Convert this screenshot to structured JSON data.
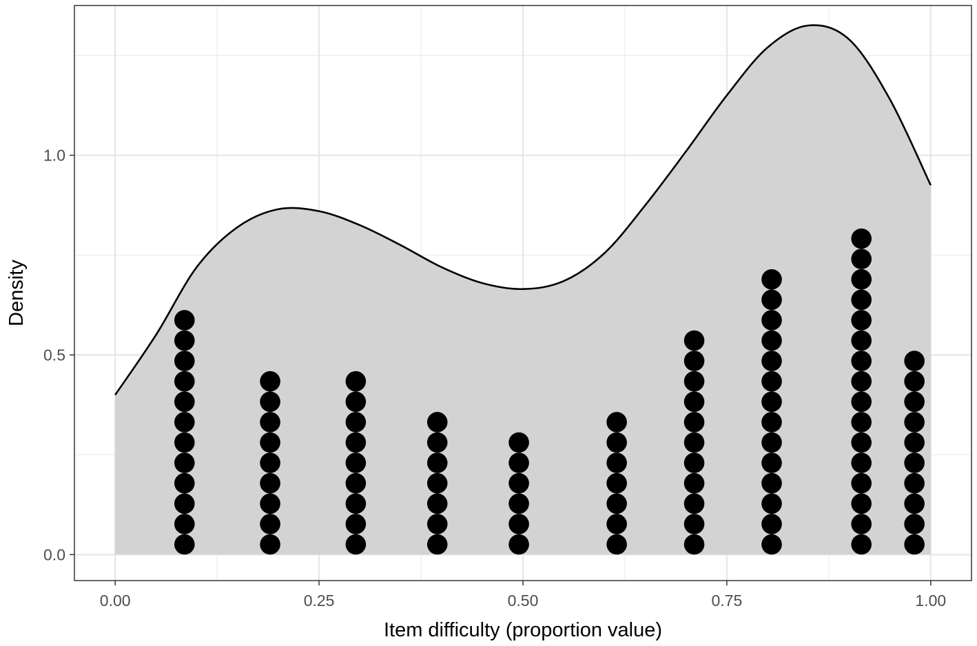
{
  "chart_data": {
    "type": "dotplot-density",
    "xlabel": "Item difficulty (proportion value)",
    "ylabel": "Density",
    "xlim": [
      -0.05,
      1.05
    ],
    "ylim": [
      -0.065,
      1.375
    ],
    "x_ticks": [
      0.0,
      0.25,
      0.5,
      0.75,
      1.0
    ],
    "x_tick_labels": [
      "0.00",
      "0.25",
      "0.50",
      "0.75",
      "1.00"
    ],
    "y_ticks": [
      0.0,
      0.5,
      1.0
    ],
    "y_tick_labels": [
      "0.0",
      "0.5",
      "1.0"
    ],
    "grid": true,
    "legend": "none",
    "density_curve": {
      "x": [
        0.0,
        0.05,
        0.1,
        0.15,
        0.2,
        0.25,
        0.3,
        0.35,
        0.4,
        0.45,
        0.5,
        0.55,
        0.6,
        0.65,
        0.7,
        0.75,
        0.8,
        0.85,
        0.9,
        0.95,
        1.0
      ],
      "y": [
        0.4,
        0.55,
        0.72,
        0.82,
        0.865,
        0.86,
        0.825,
        0.775,
        0.72,
        0.68,
        0.665,
        0.685,
        0.755,
        0.875,
        1.01,
        1.15,
        1.27,
        1.325,
        1.29,
        1.14,
        0.925
      ],
      "fill": "#d3d3d3",
      "line": "#000000"
    },
    "dot_columns": [
      {
        "x": 0.085,
        "count": 12
      },
      {
        "x": 0.19,
        "count": 9
      },
      {
        "x": 0.295,
        "count": 9
      },
      {
        "x": 0.395,
        "count": 7
      },
      {
        "x": 0.495,
        "count": 6
      },
      {
        "x": 0.615,
        "count": 7
      },
      {
        "x": 0.71,
        "count": 11
      },
      {
        "x": 0.805,
        "count": 14
      },
      {
        "x": 0.915,
        "count": 16
      },
      {
        "x": 0.98,
        "count": 10
      }
    ],
    "dot_color": "#000000"
  }
}
